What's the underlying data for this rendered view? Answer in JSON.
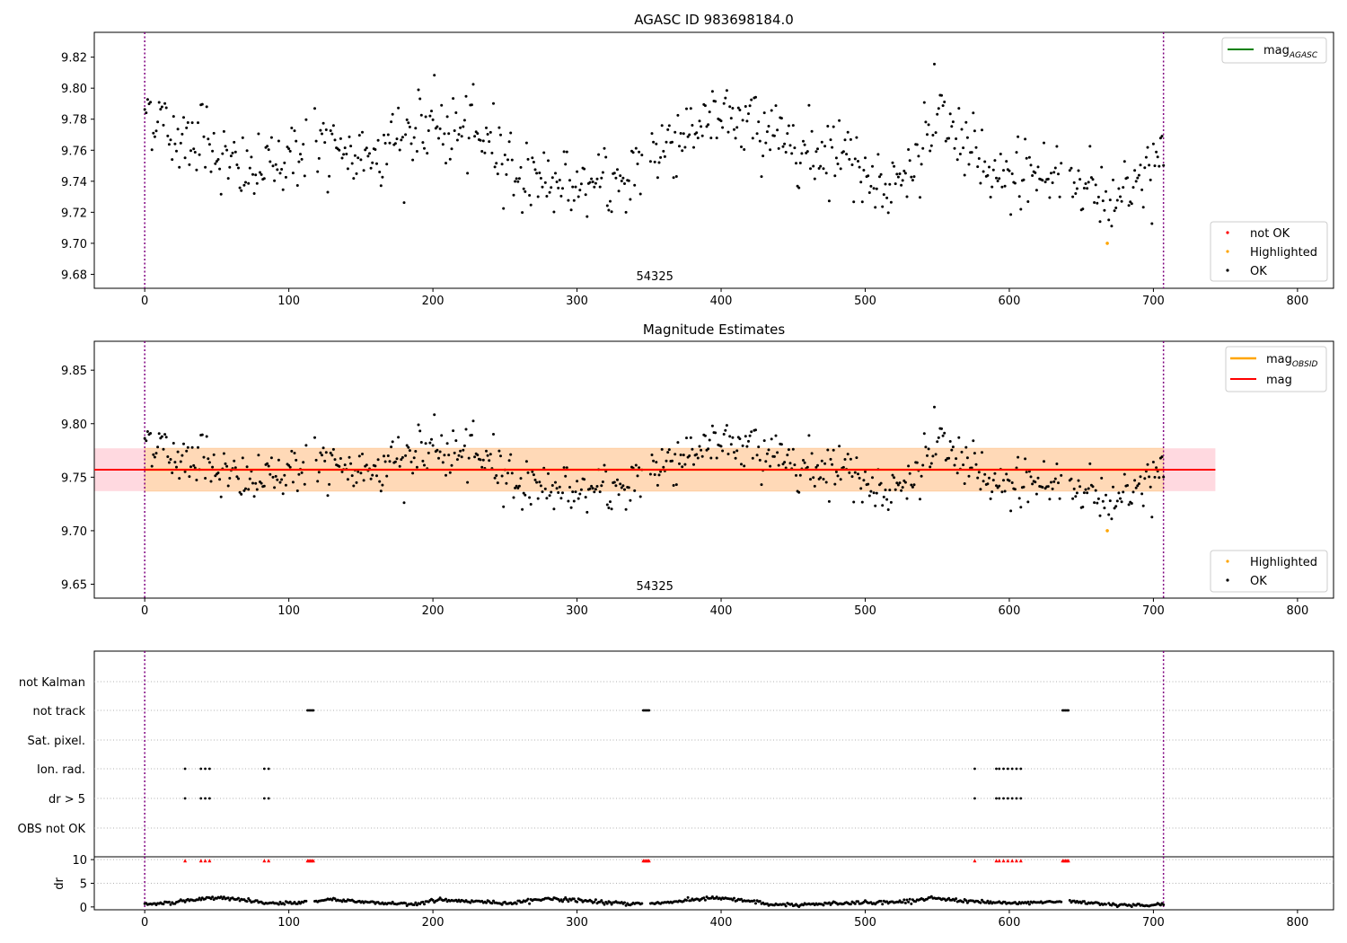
{
  "chart_data": [
    {
      "type": "scatter",
      "title": "AGASC ID 983698184.0",
      "xlabel": "",
      "ylabel": "",
      "xlim": [
        -35,
        825
      ],
      "ylim": [
        9.671,
        9.836
      ],
      "xticks": [
        0,
        100,
        200,
        300,
        400,
        500,
        600,
        700,
        800
      ],
      "yticks": [
        9.68,
        9.7,
        9.72,
        9.74,
        9.76,
        9.78,
        9.8,
        9.82
      ],
      "grid": false,
      "obsid_label": "54325",
      "obsid_label_x": 354,
      "vlines": [
        0,
        707
      ],
      "line_legend": {
        "placement": "top-right",
        "entries": [
          {
            "label": "mag",
            "sub": "AGASC",
            "color": "#008000"
          }
        ]
      },
      "point_legend": {
        "placement": "bottom-right",
        "entries": [
          {
            "label": "not OK",
            "color": "#ff0000"
          },
          {
            "label": "Highlighted",
            "color": "#ffa500"
          },
          {
            "label": "OK",
            "color": "#000000"
          }
        ]
      },
      "highlighted": [
        {
          "x": 668,
          "y": 9.7
        }
      ]
    },
    {
      "type": "scatter",
      "title": "Magnitude Estimates",
      "xlabel": "",
      "ylabel": "",
      "xlim": [
        -35,
        825
      ],
      "ylim": [
        9.637,
        9.877
      ],
      "xticks": [
        0,
        100,
        200,
        300,
        400,
        500,
        600,
        700,
        800
      ],
      "yticks": [
        9.65,
        9.7,
        9.75,
        9.8,
        9.85
      ],
      "grid": false,
      "obsid_label": "54325",
      "obsid_label_x": 354,
      "vlines": [
        0,
        707
      ],
      "mag": 9.757,
      "mag_color": "#ff0000",
      "mag_obsid": 9.757,
      "mag_obsid_color": "#ffa500",
      "band_outer": {
        "low": 9.737,
        "high": 9.777,
        "color": "#ffc0cb",
        "x": [
          -35,
          743
        ]
      },
      "band_inner": {
        "low": 9.737,
        "high": 9.777,
        "color": "#ffdab0",
        "x": [
          0,
          707
        ]
      },
      "line_legend": {
        "placement": "top-right",
        "entries": [
          {
            "label": "mag",
            "sub": "OBSID",
            "color": "#ffa500"
          },
          {
            "label": "mag",
            "sub": "",
            "color": "#ff0000"
          }
        ]
      },
      "point_legend": {
        "placement": "bottom-right",
        "entries": [
          {
            "label": "Highlighted",
            "color": "#ffa500"
          },
          {
            "label": "OK",
            "color": "#000000"
          }
        ]
      },
      "highlighted": [
        {
          "x": 668,
          "y": 9.7
        }
      ]
    },
    {
      "type": "scatter",
      "title": "",
      "xlim": [
        -35,
        825
      ],
      "categories": [
        "not Kalman",
        "not track",
        "Sat. pixel.",
        "Ion. rad.",
        "dr > 5",
        "OBS not OK"
      ],
      "flags": {
        "not Kalman": [],
        "not track": [
          113,
          114,
          115,
          116,
          117,
          346,
          347,
          348,
          349,
          350,
          637,
          638,
          639,
          640,
          641
        ],
        "Sat. pixel.": [],
        "Ion. rad.": [
          28,
          39,
          42,
          45,
          83,
          86,
          576,
          591,
          593,
          596,
          599,
          602,
          605,
          608
        ],
        "dr > 5": [
          28,
          39,
          42,
          45,
          83,
          86,
          576,
          591,
          593,
          596,
          599,
          602,
          605,
          608
        ],
        "OBS not OK": []
      }
    },
    {
      "type": "scatter",
      "ylabel": "dr",
      "xlim": [
        -35,
        825
      ],
      "ylim": [
        -0.6,
        10.6
      ],
      "yticks": [
        0,
        5,
        10
      ],
      "xticks": [
        0,
        100,
        200,
        300,
        400,
        500,
        600,
        700,
        800
      ],
      "dr_high_markers": [
        28,
        39,
        42,
        45,
        83,
        86,
        113,
        114,
        115,
        116,
        117,
        346,
        347,
        348,
        349,
        350,
        576,
        591,
        593,
        596,
        599,
        602,
        605,
        608,
        637,
        638,
        639,
        640,
        641
      ],
      "dr_high_value": 9.8,
      "marker_color": "#ff0000"
    }
  ],
  "series_points": {
    "x_step": 1,
    "x_range": [
      0,
      707
    ],
    "gaps": [
      [
        113,
        118
      ],
      [
        346,
        351
      ],
      [
        637,
        642
      ]
    ],
    "mag_trend": [
      [
        0,
        9.79
      ],
      [
        10,
        9.78
      ],
      [
        20,
        9.768
      ],
      [
        40,
        9.772
      ],
      [
        60,
        9.748
      ],
      [
        80,
        9.745
      ],
      [
        100,
        9.758
      ],
      [
        120,
        9.765
      ],
      [
        140,
        9.752
      ],
      [
        160,
        9.762
      ],
      [
        180,
        9.768
      ],
      [
        200,
        9.776
      ],
      [
        220,
        9.77
      ],
      [
        240,
        9.768
      ],
      [
        260,
        9.744
      ],
      [
        280,
        9.742
      ],
      [
        300,
        9.738
      ],
      [
        320,
        9.734
      ],
      [
        340,
        9.748
      ],
      [
        360,
        9.762
      ],
      [
        380,
        9.776
      ],
      [
        400,
        9.78
      ],
      [
        420,
        9.778
      ],
      [
        440,
        9.77
      ],
      [
        460,
        9.76
      ],
      [
        480,
        9.762
      ],
      [
        500,
        9.748
      ],
      [
        520,
        9.734
      ],
      [
        540,
        9.76
      ],
      [
        550,
        9.782
      ],
      [
        570,
        9.762
      ],
      [
        590,
        9.738
      ],
      [
        610,
        9.748
      ],
      [
        630,
        9.742
      ],
      [
        650,
        9.742
      ],
      [
        670,
        9.725
      ],
      [
        690,
        9.745
      ],
      [
        707,
        9.75
      ]
    ],
    "mag_scatter": 0.012,
    "dr_trend": [
      [
        0,
        0.5
      ],
      [
        20,
        1.0
      ],
      [
        50,
        2.0
      ],
      [
        70,
        1.4
      ],
      [
        90,
        0.6
      ],
      [
        110,
        1.0
      ],
      [
        130,
        1.6
      ],
      [
        160,
        0.9
      ],
      [
        185,
        0.6
      ],
      [
        205,
        1.5
      ],
      [
        225,
        1.2
      ],
      [
        255,
        0.8
      ],
      [
        280,
        1.8
      ],
      [
        310,
        1.2
      ],
      [
        335,
        0.6
      ],
      [
        360,
        0.9
      ],
      [
        395,
        1.9
      ],
      [
        420,
        1.2
      ],
      [
        440,
        0.3
      ],
      [
        465,
        0.6
      ],
      [
        490,
        0.9
      ],
      [
        520,
        1.0
      ],
      [
        545,
        1.8
      ],
      [
        580,
        1.1
      ],
      [
        600,
        0.7
      ],
      [
        640,
        1.2
      ],
      [
        670,
        0.6
      ],
      [
        695,
        0.2
      ],
      [
        707,
        0.6
      ]
    ],
    "dr_scatter": 0.18
  }
}
